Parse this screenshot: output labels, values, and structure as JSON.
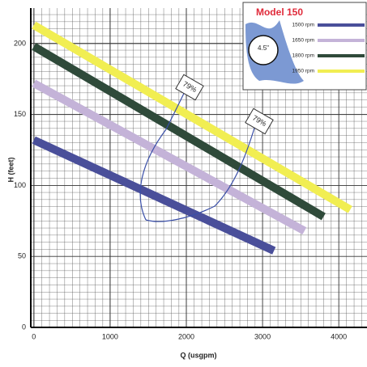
{
  "chart_data": {
    "type": "line",
    "xlabel": "Q (usgpm)",
    "ylabel": "H (feet)",
    "legend_title": "Model 150",
    "impeller_label": "4.5\"",
    "annotations": [
      "79%",
      "79%"
    ],
    "xlim": [
      -40,
      4370
    ],
    "ylim": [
      0,
      225
    ],
    "xticks": [
      0,
      1000,
      2000,
      3000,
      4000
    ],
    "yticks": [
      0,
      50,
      100,
      150,
      200
    ],
    "grid": true,
    "legend": "upper right",
    "series": [
      {
        "name": "1500 rpm",
        "color": "#4a4f9a",
        "x": [
          0,
          3150
        ],
        "values": [
          132,
          54
        ]
      },
      {
        "name": "1650 rpm",
        "color": "#c4b3d8",
        "x": [
          0,
          3550
        ],
        "values": [
          172,
          68
        ]
      },
      {
        "name": "1800 rpm",
        "color": "#2f4a3a",
        "x": [
          0,
          3800
        ],
        "values": [
          198,
          78
        ]
      },
      {
        "name": "1950 rpm",
        "color": "#f1ee52",
        "x": [
          0,
          4150
        ],
        "values": [
          213,
          83
        ]
      }
    ]
  }
}
